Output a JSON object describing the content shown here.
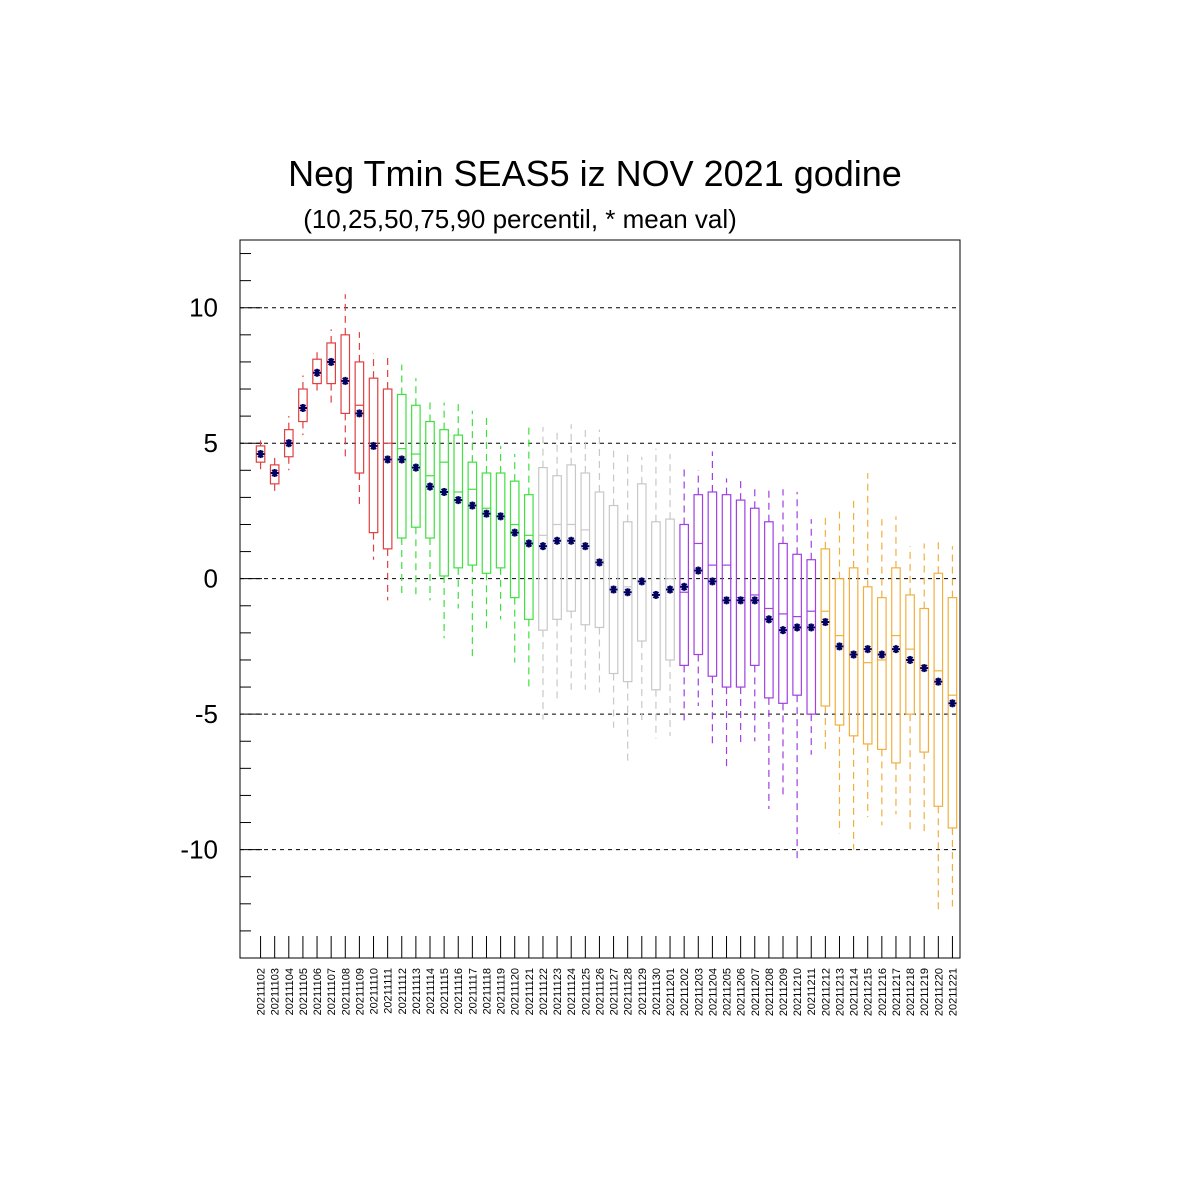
{
  "chart_data": {
    "type": "box",
    "title": "Neg Tmin SEAS5 iz NOV 2021 godine",
    "subtitle": "(10,25,50,75,90 percentil, * mean val)",
    "ylim": [
      -14,
      12.5
    ],
    "yticks": [
      10,
      5,
      0,
      -5,
      -10
    ],
    "ytick_labels": [
      "10",
      "5",
      "0",
      "-5",
      "-10"
    ],
    "grid_y": true,
    "colors": {
      "red": "#e04040",
      "green": "#40e040",
      "gray": "#c8c8c8",
      "purple": "#a040e0",
      "orange": "#f0b040",
      "mean": "#000060"
    },
    "categories": [
      "20211102",
      "20211103",
      "20211104",
      "20211105",
      "20211106",
      "20211107",
      "20211108",
      "20211109",
      "20211110",
      "20211111",
      "20211112",
      "20211113",
      "20211114",
      "20211115",
      "20211116",
      "20211117",
      "20211118",
      "20211119",
      "20211120",
      "20211121",
      "20211122",
      "20211123",
      "20211124",
      "20211125",
      "20211126",
      "20211127",
      "20211128",
      "20211129",
      "20211130",
      "20211201",
      "20211202",
      "20211203",
      "20211204",
      "20211205",
      "20211206",
      "20211207",
      "20211208",
      "20211209",
      "20211210",
      "20211211",
      "20211212",
      "20211213",
      "20211214",
      "20211215",
      "20211216",
      "20211217",
      "20211218",
      "20211219",
      "20211220",
      "20211221"
    ],
    "series": [
      {
        "color": "red",
        "p10": 4.0,
        "p25": 4.3,
        "p50": 4.6,
        "p75": 4.9,
        "p90": 5.1,
        "mean": 4.6
      },
      {
        "color": "red",
        "p10": 3.2,
        "p25": 3.5,
        "p50": 3.9,
        "p75": 4.2,
        "p90": 4.5,
        "mean": 3.9
      },
      {
        "color": "red",
        "p10": 4.0,
        "p25": 4.5,
        "p50": 5.0,
        "p75": 5.5,
        "p90": 6.0,
        "mean": 5.0
      },
      {
        "color": "red",
        "p10": 5.3,
        "p25": 5.8,
        "p50": 6.3,
        "p75": 7.0,
        "p90": 7.5,
        "mean": 6.3
      },
      {
        "color": "red",
        "p10": 6.8,
        "p25": 7.2,
        "p50": 7.6,
        "p75": 8.1,
        "p90": 8.5,
        "mean": 7.6
      },
      {
        "color": "red",
        "p10": 6.5,
        "p25": 7.2,
        "p50": 8.0,
        "p75": 8.7,
        "p90": 9.2,
        "mean": 8.0
      },
      {
        "color": "red",
        "p10": 4.5,
        "p25": 6.1,
        "p50": 7.3,
        "p75": 9.0,
        "p90": 10.5,
        "mean": 7.3
      },
      {
        "color": "red",
        "p10": 2.7,
        "p25": 3.9,
        "p50": 6.4,
        "p75": 8.0,
        "p90": 9.1,
        "mean": 6.1
      },
      {
        "color": "red",
        "p10": 0.7,
        "p25": 1.7,
        "p50": 4.9,
        "p75": 7.4,
        "p90": 8.3,
        "mean": 4.9
      },
      {
        "color": "red",
        "p10": -0.8,
        "p25": 1.1,
        "p50": 5.0,
        "p75": 7.0,
        "p90": 8.2,
        "mean": 4.4
      },
      {
        "color": "green",
        "p10": -0.7,
        "p25": 1.5,
        "p50": 4.8,
        "p75": 6.8,
        "p90": 7.9,
        "mean": 4.4
      },
      {
        "color": "green",
        "p10": -0.7,
        "p25": 1.9,
        "p50": 4.6,
        "p75": 6.4,
        "p90": 7.4,
        "mean": 4.1
      },
      {
        "color": "green",
        "p10": -0.8,
        "p25": 1.5,
        "p50": 3.8,
        "p75": 5.8,
        "p90": 6.6,
        "mean": 3.4
      },
      {
        "color": "green",
        "p10": -2.2,
        "p25": 0.1,
        "p50": 4.3,
        "p75": 5.5,
        "p90": 6.5,
        "mean": 3.2
      },
      {
        "color": "green",
        "p10": -1.1,
        "p25": 0.4,
        "p50": 3.2,
        "p75": 5.3,
        "p90": 6.5,
        "mean": 2.9
      },
      {
        "color": "green",
        "p10": -3.0,
        "p25": 0.5,
        "p50": 3.3,
        "p75": 4.3,
        "p90": 6.2,
        "mean": 2.7
      },
      {
        "color": "green",
        "p10": -1.9,
        "p25": 0.2,
        "p50": 2.6,
        "p75": 3.9,
        "p90": 6.0,
        "mean": 2.4
      },
      {
        "color": "green",
        "p10": -1.5,
        "p25": 0.4,
        "p50": 2.3,
        "p75": 3.9,
        "p90": 4.9,
        "mean": 2.3
      },
      {
        "color": "green",
        "p10": -3.1,
        "p25": -0.7,
        "p50": 2.0,
        "p75": 3.6,
        "p90": 4.6,
        "mean": 1.7
      },
      {
        "color": "green",
        "p10": -4.0,
        "p25": -1.5,
        "p50": 1.6,
        "p75": 3.1,
        "p90": 5.6,
        "mean": 1.3
      },
      {
        "color": "gray",
        "p10": -5.2,
        "p25": -1.9,
        "p50": 1.6,
        "p75": 4.1,
        "p90": 5.6,
        "mean": 1.2
      },
      {
        "color": "gray",
        "p10": -4.6,
        "p25": -1.5,
        "p50": 2.0,
        "p75": 3.8,
        "p90": 5.4,
        "mean": 1.4
      },
      {
        "color": "gray",
        "p10": -4.1,
        "p25": -1.2,
        "p50": 2.0,
        "p75": 4.2,
        "p90": 5.7,
        "mean": 1.4
      },
      {
        "color": "gray",
        "p10": -4.1,
        "p25": -1.7,
        "p50": 1.8,
        "p75": 3.9,
        "p90": 5.6,
        "mean": 1.2
      },
      {
        "color": "gray",
        "p10": -4.2,
        "p25": -1.8,
        "p50": 0.7,
        "p75": 3.2,
        "p90": 5.5,
        "mean": 0.6
      },
      {
        "color": "gray",
        "p10": -5.5,
        "p25": -3.5,
        "p50": -0.4,
        "p75": 2.7,
        "p90": 4.9,
        "mean": -0.4
      },
      {
        "color": "gray",
        "p10": -6.9,
        "p25": -3.8,
        "p50": -0.3,
        "p75": 2.1,
        "p90": 4.7,
        "mean": -0.5
      },
      {
        "color": "gray",
        "p10": -5.4,
        "p25": -2.3,
        "p50": -0.1,
        "p75": 3.5,
        "p90": 4.5,
        "mean": -0.1
      },
      {
        "color": "gray",
        "p10": -5.9,
        "p25": -4.1,
        "p50": -0.6,
        "p75": 2.1,
        "p90": 4.8,
        "mean": -0.6
      },
      {
        "color": "gray",
        "p10": -5.8,
        "p25": -3.0,
        "p50": 0.0,
        "p75": 2.2,
        "p90": 4.6,
        "mean": -0.4
      },
      {
        "color": "purple",
        "p10": -5.3,
        "p25": -3.2,
        "p50": -0.5,
        "p75": 2.0,
        "p90": 4.1,
        "mean": -0.3
      },
      {
        "color": "purple",
        "p10": -4.7,
        "p25": -2.8,
        "p50": 1.3,
        "p75": 3.1,
        "p90": 4.0,
        "mean": 0.3
      },
      {
        "color": "purple",
        "p10": -6.1,
        "p25": -3.6,
        "p50": 0.5,
        "p75": 3.2,
        "p90": 4.7,
        "mean": -0.1
      },
      {
        "color": "purple",
        "p10": -7.1,
        "p25": -4.0,
        "p50": 0.5,
        "p75": 3.1,
        "p90": 3.7,
        "mean": -0.8
      },
      {
        "color": "purple",
        "p10": -6.2,
        "p25": -4.0,
        "p50": -0.7,
        "p75": 2.9,
        "p90": 3.6,
        "mean": -0.8
      },
      {
        "color": "purple",
        "p10": -6.0,
        "p25": -3.2,
        "p50": -0.6,
        "p75": 2.6,
        "p90": 3.3,
        "mean": -0.8
      },
      {
        "color": "purple",
        "p10": -8.5,
        "p25": -4.4,
        "p50": -1.1,
        "p75": 2.1,
        "p90": 3.4,
        "mean": -1.5
      },
      {
        "color": "purple",
        "p10": -8.0,
        "p25": -4.6,
        "p50": -1.3,
        "p75": 1.3,
        "p90": 3.3,
        "mean": -1.9
      },
      {
        "color": "purple",
        "p10": -10.5,
        "p25": -4.3,
        "p50": -1.4,
        "p75": 0.9,
        "p90": 3.2,
        "mean": -1.8
      },
      {
        "color": "purple",
        "p10": -6.5,
        "p25": -5.0,
        "p50": -1.2,
        "p75": 0.7,
        "p90": 2.2,
        "mean": -1.8
      },
      {
        "color": "orange",
        "p10": -6.3,
        "p25": -4.7,
        "p50": -1.2,
        "p75": 1.1,
        "p90": 2.4,
        "mean": -1.6
      },
      {
        "color": "orange",
        "p10": -9.4,
        "p25": -5.4,
        "p50": -2.1,
        "p75": 0.0,
        "p90": 2.6,
        "mean": -2.5
      },
      {
        "color": "orange",
        "p10": -10.0,
        "p25": -5.8,
        "p50": -2.7,
        "p75": 0.4,
        "p90": 3.0,
        "mean": -2.8
      },
      {
        "color": "orange",
        "p10": -8.8,
        "p25": -6.1,
        "p50": -3.1,
        "p75": -0.3,
        "p90": 3.9,
        "mean": -2.6
      },
      {
        "color": "orange",
        "p10": -9.1,
        "p25": -6.3,
        "p50": -3.0,
        "p75": -0.7,
        "p90": 2.2,
        "mean": -2.8
      },
      {
        "color": "orange",
        "p10": -8.7,
        "p25": -6.8,
        "p50": -2.1,
        "p75": 0.4,
        "p90": 2.3,
        "mean": -2.6
      },
      {
        "color": "orange",
        "p10": -9.3,
        "p25": -5.0,
        "p50": -2.6,
        "p75": -0.6,
        "p90": 1.2,
        "mean": -3.0
      },
      {
        "color": "orange",
        "p10": -9.5,
        "p25": -6.4,
        "p50": -3.2,
        "p75": -1.1,
        "p90": 1.3,
        "mean": -3.3
      },
      {
        "color": "orange",
        "p10": -12.3,
        "p25": -8.4,
        "p50": -3.4,
        "p75": 0.2,
        "p90": 1.4,
        "mean": -3.8
      },
      {
        "color": "orange",
        "p10": -12.1,
        "p25": -9.2,
        "p50": -4.3,
        "p75": -0.7,
        "p90": 1.2,
        "mean": -4.6
      }
    ]
  }
}
